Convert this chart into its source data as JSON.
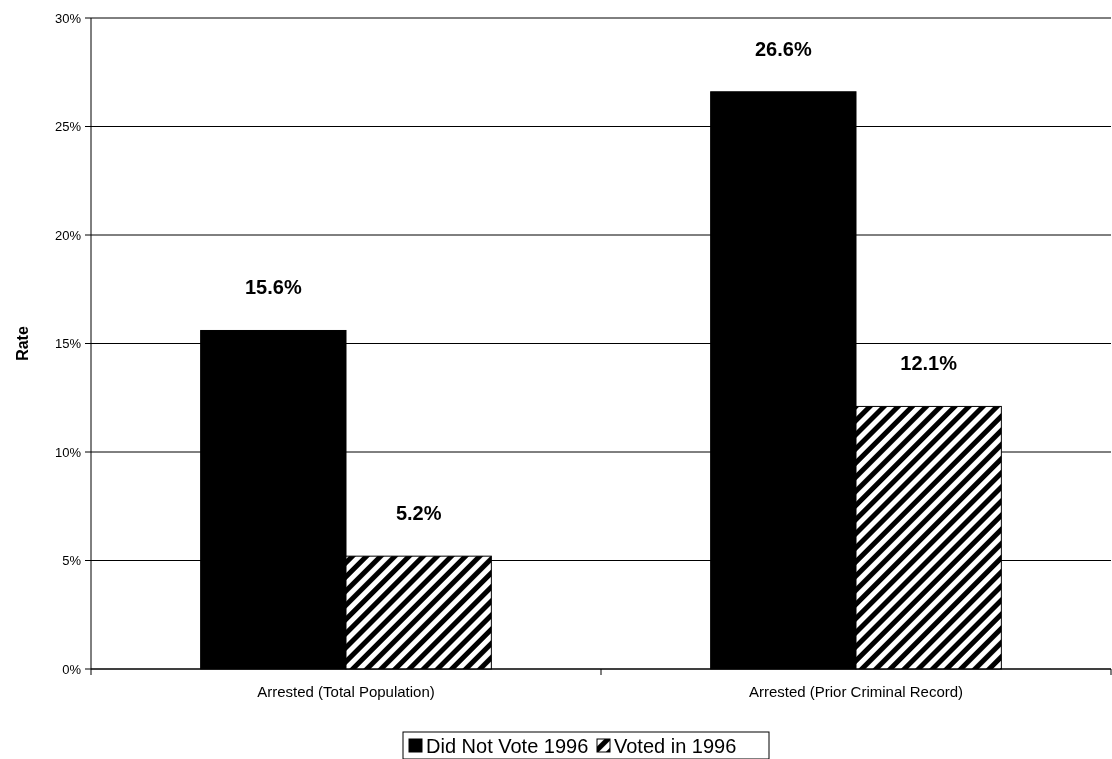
{
  "chart_data": {
    "type": "bar",
    "ylabel": "Rate",
    "categories": [
      "Arrested (Total Population)",
      "Arrested (Prior Criminal Record)"
    ],
    "series": [
      {
        "name": "Did Not Vote 1996",
        "color": "#000000",
        "values": [
          15.6,
          26.6
        ],
        "value_labels": [
          "15.6%",
          "26.6%"
        ]
      },
      {
        "name": "Voted in 1996",
        "color": "#000000",
        "values": [
          5.2,
          12.1
        ],
        "value_labels": [
          "5.2%",
          "12.1%"
        ]
      }
    ],
    "ylim": [
      0,
      30
    ],
    "yticks": [
      {
        "value": 0,
        "label": "0%"
      },
      {
        "value": 5,
        "label": "5%"
      },
      {
        "value": 10,
        "label": "10%"
      },
      {
        "value": 15,
        "label": "15%"
      },
      {
        "value": 20,
        "label": "20%"
      },
      {
        "value": 25,
        "label": "25%"
      },
      {
        "value": 30,
        "label": "30%"
      }
    ],
    "grid": "y",
    "legend": "bottom"
  }
}
